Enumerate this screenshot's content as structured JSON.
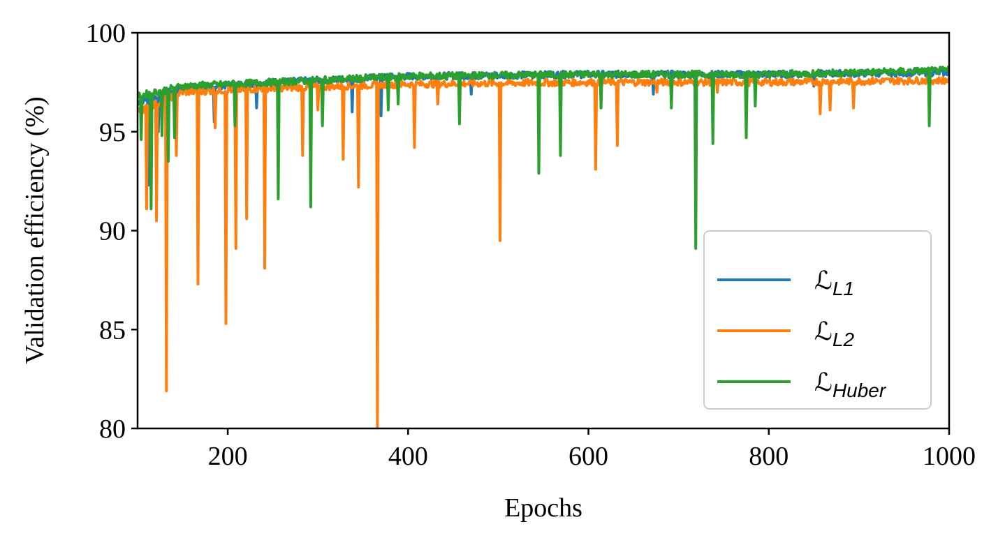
{
  "chart_data": {
    "type": "line",
    "title": "",
    "xlabel": "Epochs",
    "ylabel": "Validation efficiency (%)",
    "xlim": [
      100,
      1000
    ],
    "ylim": [
      80,
      100
    ],
    "xticks": [
      200,
      400,
      600,
      800,
      1000
    ],
    "yticks": [
      80,
      85,
      90,
      95,
      100
    ],
    "grid": false,
    "legend_position": "lower-right",
    "series": [
      {
        "name": "L1",
        "legend_script": "ℒ",
        "legend_sub": "L1",
        "color": "#1f77b4",
        "baseline": [
          [
            100,
            96.5
          ],
          [
            150,
            97.2
          ],
          [
            250,
            97.5
          ],
          [
            400,
            97.8
          ],
          [
            600,
            97.9
          ],
          [
            800,
            97.9
          ],
          [
            1000,
            98.0
          ]
        ],
        "dips": [
          [
            112,
            92.3
          ],
          [
            123,
            95.0
          ],
          [
            185,
            95.5
          ],
          [
            232,
            96.2
          ],
          [
            338,
            96.0
          ],
          [
            370,
            95.8
          ],
          [
            470,
            96.9
          ],
          [
            672,
            96.9
          ],
          [
            850,
            97.3
          ],
          [
            978,
            97.2
          ]
        ]
      },
      {
        "name": "L2",
        "legend_script": "ℒ",
        "legend_sub": "L2",
        "color": "#ff7f0e",
        "baseline": [
          [
            100,
            96.0
          ],
          [
            150,
            97.0
          ],
          [
            250,
            97.2
          ],
          [
            400,
            97.4
          ],
          [
            600,
            97.5
          ],
          [
            800,
            97.5
          ],
          [
            1000,
            97.6
          ]
        ],
        "dips": [
          [
            110,
            91.1
          ],
          [
            121,
            90.5
          ],
          [
            132,
            81.9
          ],
          [
            143,
            93.8
          ],
          [
            167,
            87.3
          ],
          [
            186,
            95.2
          ],
          [
            198,
            85.3
          ],
          [
            209,
            89.1
          ],
          [
            221,
            90.6
          ],
          [
            241,
            88.1
          ],
          [
            283,
            93.8
          ],
          [
            300,
            96.1
          ],
          [
            328,
            93.6
          ],
          [
            345,
            92.2
          ],
          [
            366,
            80.0
          ],
          [
            407,
            94.2
          ],
          [
            433,
            96.4
          ],
          [
            502,
            89.5
          ],
          [
            608,
            93.1
          ],
          [
            632,
            94.3
          ],
          [
            676,
            97.0
          ],
          [
            743,
            97.0
          ],
          [
            857,
            95.9
          ],
          [
            868,
            96.1
          ],
          [
            894,
            96.2
          ]
        ]
      },
      {
        "name": "Huber",
        "legend_script": "ℒ",
        "legend_sub": "Huber",
        "color": "#2ca02c",
        "baseline": [
          [
            100,
            96.8
          ],
          [
            150,
            97.3
          ],
          [
            250,
            97.5
          ],
          [
            400,
            97.8
          ],
          [
            600,
            97.9
          ],
          [
            800,
            97.9
          ],
          [
            1000,
            98.1
          ]
        ],
        "dips": [
          [
            104,
            94.6
          ],
          [
            115,
            91.1
          ],
          [
            127,
            94.8
          ],
          [
            134,
            93.5
          ],
          [
            141,
            94.7
          ],
          [
            208,
            95.3
          ],
          [
            256,
            91.6
          ],
          [
            292,
            91.2
          ],
          [
            305,
            95.3
          ],
          [
            378,
            96.1
          ],
          [
            389,
            96.4
          ],
          [
            457,
            95.4
          ],
          [
            545,
            92.9
          ],
          [
            569,
            93.8
          ],
          [
            614,
            96.2
          ],
          [
            692,
            96.2
          ],
          [
            719,
            89.1
          ],
          [
            738,
            94.4
          ],
          [
            775,
            94.7
          ],
          [
            785,
            96.3
          ],
          [
            978,
            95.3
          ]
        ]
      }
    ]
  }
}
